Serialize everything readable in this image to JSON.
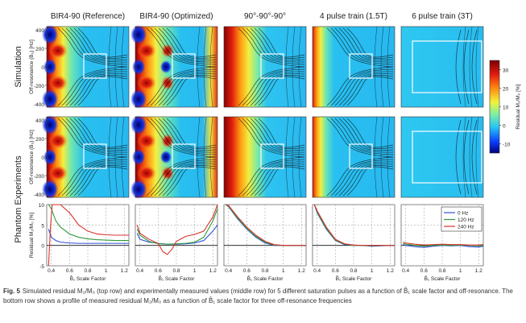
{
  "figure": {
    "columns": [
      "BIR4-90 (Reference)",
      "BIR4-90 (Optimized)",
      "90°-90°-90°",
      "4 pulse train (1.5T)",
      "6 pulse train (3T)"
    ],
    "row_titles": [
      "Simulation",
      "Phantom Experiments"
    ],
    "map_ylabel": "Off-resonance (B₀) [Hz]",
    "map_yticks": [
      "400",
      "200",
      "0",
      "-200",
      "-400"
    ],
    "profile_ylabel": "Residual M₂/M₀ [%]",
    "profile_yticks": [
      "10",
      "5",
      "0",
      "-5"
    ],
    "xlabel": "B̂₁ Scale Factor",
    "xticks": [
      "0.4",
      "0.6",
      "0.8",
      "1",
      "1.2"
    ],
    "colorbar": {
      "label": "Residual M₂/M₀ [%]",
      "ticks": [
        "30",
        "20",
        "10",
        "0",
        "-10"
      ],
      "range": [
        -15,
        35
      ]
    },
    "legend": [
      {
        "name": "0 Hz",
        "color": "#2f4fd8"
      },
      {
        "name": "120 Hz",
        "color": "#2e9a3a"
      },
      {
        "name": "240 Hz",
        "color": "#d8322c"
      }
    ]
  },
  "chart_data": [
    {
      "type": "line",
      "title": "BIR4-90 (Reference)",
      "xlabel": "B̂₁ Scale Factor",
      "ylabel": "Residual M₂/M₀ [%]",
      "xlim": [
        0.35,
        1.25
      ],
      "ylim": [
        -5,
        10
      ],
      "series": [
        {
          "name": "0 Hz",
          "x": [
            0.37,
            0.4,
            0.45,
            0.5,
            0.6,
            0.7,
            0.8,
            0.9,
            1.0,
            1.1,
            1.2,
            1.25
          ],
          "y": [
            4,
            2,
            1.2,
            0.8,
            0.6,
            0.5,
            0.5,
            0.5,
            0.5,
            0.5,
            0.5,
            0.5
          ]
        },
        {
          "name": "120 Hz",
          "x": [
            0.37,
            0.4,
            0.45,
            0.5,
            0.6,
            0.7,
            0.8,
            0.9,
            1.0,
            1.1,
            1.2,
            1.25
          ],
          "y": [
            10,
            9,
            6,
            4.5,
            2.8,
            2.0,
            1.6,
            1.4,
            1.3,
            1.2,
            1.2,
            1.2
          ]
        },
        {
          "name": "240 Hz",
          "x": [
            0.37,
            0.39,
            0.41,
            0.5,
            0.6,
            0.7,
            0.8,
            0.9,
            1.0,
            1.1,
            1.2,
            1.25
          ],
          "y": [
            -5,
            4,
            10,
            10,
            8,
            5,
            3.5,
            2.8,
            2.6,
            2.5,
            2.5,
            2.5
          ]
        }
      ]
    },
    {
      "type": "line",
      "title": "BIR4-90 (Optimized)",
      "xlabel": "B̂₁ Scale Factor",
      "ylabel": "",
      "xlim": [
        0.35,
        1.25
      ],
      "ylim": [
        -5,
        10
      ],
      "series": [
        {
          "name": "0 Hz",
          "x": [
            0.37,
            0.4,
            0.5,
            0.6,
            0.7,
            0.8,
            0.9,
            1.0,
            1.1,
            1.2,
            1.25
          ],
          "y": [
            3,
            1.5,
            0.8,
            0.5,
            0.3,
            0.3,
            0.4,
            0.6,
            1.2,
            3.5,
            5
          ]
        },
        {
          "name": "120 Hz",
          "x": [
            0.37,
            0.4,
            0.5,
            0.6,
            0.7,
            0.8,
            0.9,
            1.0,
            1.1,
            1.2,
            1.25
          ],
          "y": [
            4,
            2.5,
            1,
            0.4,
            0.3,
            0.4,
            0.5,
            0.8,
            2,
            6,
            9
          ]
        },
        {
          "name": "240 Hz",
          "x": [
            0.37,
            0.4,
            0.5,
            0.6,
            0.65,
            0.7,
            0.75,
            0.8,
            0.9,
            1.0,
            1.1,
            1.2,
            1.25
          ],
          "y": [
            5,
            3,
            1.5,
            0.5,
            -1.5,
            -2.2,
            -1,
            1,
            2.2,
            2.7,
            3.5,
            7,
            10
          ]
        }
      ]
    },
    {
      "type": "line",
      "title": "90°-90°-90°",
      "xlabel": "B̂₁ Scale Factor",
      "ylabel": "",
      "xlim": [
        0.35,
        1.25
      ],
      "ylim": [
        -5,
        10
      ],
      "series": [
        {
          "name": "0 Hz",
          "x": [
            0.37,
            0.4,
            0.5,
            0.6,
            0.7,
            0.8,
            0.9,
            1.0,
            1.1,
            1.2,
            1.25
          ],
          "y": [
            10,
            9.5,
            6.5,
            4,
            2,
            0.6,
            0,
            0,
            0,
            0,
            0
          ]
        },
        {
          "name": "120 Hz",
          "x": [
            0.37,
            0.4,
            0.5,
            0.6,
            0.7,
            0.8,
            0.9,
            1.0,
            1.1,
            1.2,
            1.25
          ],
          "y": [
            10,
            9.6,
            6.7,
            4.2,
            2.2,
            0.8,
            0.1,
            0,
            0,
            0,
            0
          ]
        },
        {
          "name": "240 Hz",
          "x": [
            0.37,
            0.4,
            0.5,
            0.6,
            0.7,
            0.8,
            0.9,
            1.0,
            1.1,
            1.2,
            1.25
          ],
          "y": [
            10,
            9.8,
            7,
            4.5,
            2.5,
            1,
            0.2,
            0,
            0,
            0,
            0
          ]
        }
      ]
    },
    {
      "type": "line",
      "title": "4 pulse train (1.5T)",
      "xlabel": "B̂₁ Scale Factor",
      "ylabel": "",
      "xlim": [
        0.35,
        1.25
      ],
      "ylim": [
        -5,
        10
      ],
      "series": [
        {
          "name": "0 Hz",
          "x": [
            0.37,
            0.4,
            0.5,
            0.6,
            0.7,
            0.8,
            0.9,
            1.0,
            1.1,
            1.2,
            1.25
          ],
          "y": [
            10,
            8,
            4,
            1.2,
            0.2,
            0,
            0,
            -0.2,
            -0.1,
            0,
            0
          ]
        },
        {
          "name": "120 Hz",
          "x": [
            0.37,
            0.4,
            0.5,
            0.6,
            0.7,
            0.8,
            0.9,
            1.0,
            1.1,
            1.2,
            1.25
          ],
          "y": [
            10,
            8.2,
            4.2,
            1.3,
            0.3,
            0,
            0,
            -0.1,
            0,
            0,
            0
          ]
        },
        {
          "name": "240 Hz",
          "x": [
            0.37,
            0.4,
            0.5,
            0.6,
            0.7,
            0.8,
            0.9,
            1.0,
            1.1,
            1.2,
            1.25
          ],
          "y": [
            10,
            8.5,
            4.5,
            1.5,
            0.4,
            0.1,
            0,
            0,
            0,
            0,
            0
          ]
        }
      ]
    },
    {
      "type": "line",
      "title": "6 pulse train (3T)",
      "xlabel": "B̂₁ Scale Factor",
      "ylabel": "",
      "xlim": [
        0.35,
        1.25
      ],
      "ylim": [
        -5,
        10
      ],
      "series": [
        {
          "name": "0 Hz",
          "x": [
            0.37,
            0.4,
            0.5,
            0.6,
            0.7,
            0.8,
            0.9,
            1.0,
            1.1,
            1.2,
            1.25
          ],
          "y": [
            0.2,
            0,
            -0.3,
            -0.5,
            -0.2,
            0,
            -0.1,
            0,
            -0.3,
            -0.4,
            -0.2
          ]
        },
        {
          "name": "120 Hz",
          "x": [
            0.37,
            0.4,
            0.5,
            0.6,
            0.7,
            0.8,
            0.9,
            1.0,
            1.1,
            1.2,
            1.25
          ],
          "y": [
            0.5,
            0.3,
            0,
            -0.2,
            0,
            0.1,
            0,
            0.1,
            0,
            -0.1,
            0
          ]
        },
        {
          "name": "240 Hz",
          "x": [
            0.37,
            0.4,
            0.5,
            0.6,
            0.7,
            0.8,
            0.9,
            1.0,
            1.1,
            1.2,
            1.25
          ],
          "y": [
            0.8,
            0.6,
            0.3,
            0.1,
            0.2,
            0.3,
            0.2,
            0.2,
            0.1,
            0.1,
            0.2
          ]
        }
      ]
    }
  ],
  "caption": {
    "label": "Fig. 5",
    "text": "Simulated residual M₂/M₀ (top row) and experimentally measured values (middle row) for 5 different saturation pulses as a function of B̂₁ scale factor and off-resonance. The bottom row shows a profile of measured residual M₂/M₀ as a function of B̂₁ scale factor for three off-resonance frequencies"
  }
}
